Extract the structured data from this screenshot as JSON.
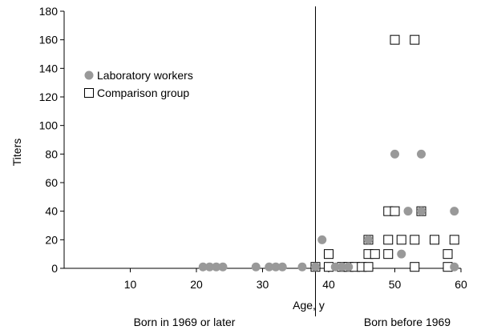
{
  "chart_data": {
    "type": "scatter",
    "title": "",
    "xlabel": "Age, y",
    "ylabel": "Titers",
    "xlim": [
      0,
      60
    ],
    "ylim": [
      0,
      180
    ],
    "xticks": [
      10,
      20,
      30,
      40,
      50,
      60
    ],
    "yticks": [
      0,
      20,
      40,
      60,
      80,
      100,
      120,
      140,
      160,
      180
    ],
    "grid": false,
    "legend_position": "upper-left",
    "divider_x": 38,
    "regions": [
      {
        "label": "Born in 1969 or later",
        "side": "left"
      },
      {
        "label": "Born before 1969",
        "side": "right"
      }
    ],
    "colors": {
      "lab_fill": "#999999",
      "comp_fill": "#ffffff",
      "stroke": "#000000"
    },
    "series": [
      {
        "name": "Laboratory workers",
        "marker": "circle",
        "points": [
          [
            21,
            1
          ],
          [
            22,
            1
          ],
          [
            23,
            1
          ],
          [
            24,
            1
          ],
          [
            29,
            1
          ],
          [
            31,
            1
          ],
          [
            32,
            1
          ],
          [
            33,
            1
          ],
          [
            36,
            1
          ],
          [
            38,
            1
          ],
          [
            39,
            20
          ],
          [
            41,
            1
          ],
          [
            42,
            1
          ],
          [
            43,
            1
          ],
          [
            46,
            20
          ],
          [
            50,
            80
          ],
          [
            51,
            10
          ],
          [
            52,
            40
          ],
          [
            54,
            80
          ],
          [
            54,
            40
          ],
          [
            59,
            40
          ],
          [
            59,
            1
          ]
        ]
      },
      {
        "name": "Comparison group",
        "marker": "square",
        "points": [
          [
            38,
            1
          ],
          [
            40,
            10
          ],
          [
            40,
            1
          ],
          [
            42,
            1
          ],
          [
            43,
            1
          ],
          [
            44,
            1
          ],
          [
            45,
            1
          ],
          [
            46,
            10
          ],
          [
            46,
            1
          ],
          [
            46,
            20
          ],
          [
            47,
            10
          ],
          [
            49,
            40
          ],
          [
            49,
            20
          ],
          [
            49,
            10
          ],
          [
            50,
            160
          ],
          [
            50,
            40
          ],
          [
            51,
            20
          ],
          [
            53,
            160
          ],
          [
            53,
            20
          ],
          [
            53,
            1
          ],
          [
            54,
            40
          ],
          [
            56,
            20
          ],
          [
            58,
            10
          ],
          [
            58,
            1
          ],
          [
            59,
            20
          ]
        ]
      }
    ]
  }
}
